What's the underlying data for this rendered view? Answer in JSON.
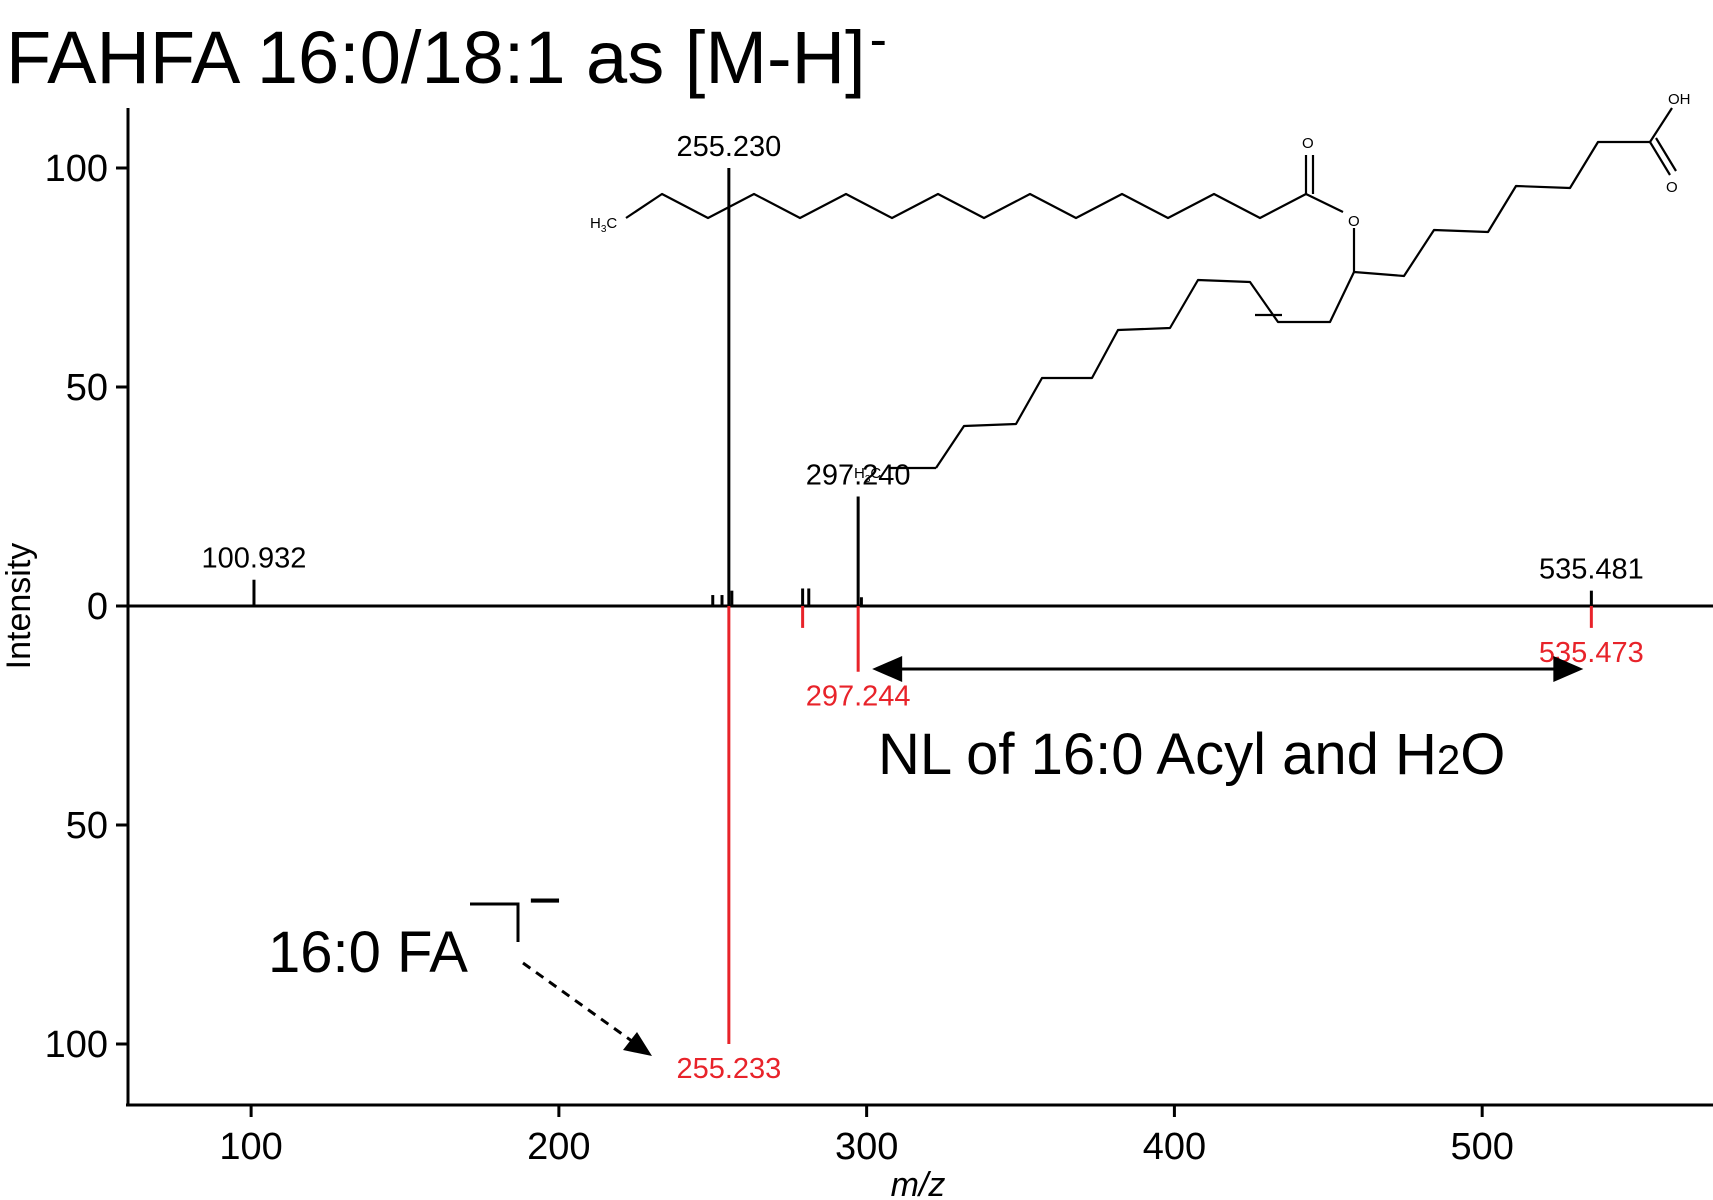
{
  "chart_data": {
    "type": "mirror_spectrum",
    "title": "FAHFA 16:0/18:1 as [M-H]",
    "title_superscript": "-",
    "xlabel": "m/z",
    "ylabel": "Intensity",
    "xlim": [
      60,
      575
    ],
    "ylim_top": [
      0,
      100
    ],
    "ylim_bottom": [
      0,
      100
    ],
    "x_ticks": [
      100,
      200,
      300,
      400,
      500
    ],
    "y_ticks_top": [
      0,
      50,
      100
    ],
    "y_ticks_bottom": [
      50,
      100
    ],
    "colors": {
      "top": "#000000",
      "bottom": "#e8232a"
    },
    "series": [
      {
        "name": "top",
        "color": "#000000",
        "peaks": [
          {
            "mz": 100.932,
            "intensity": 6,
            "label": "100.932"
          },
          {
            "mz": 250.0,
            "intensity": 2.5
          },
          {
            "mz": 253.0,
            "intensity": 2.5
          },
          {
            "mz": 255.23,
            "intensity": 100,
            "label": "255.230"
          },
          {
            "mz": 256.2,
            "intensity": 3.5
          },
          {
            "mz": 279.2,
            "intensity": 4
          },
          {
            "mz": 281.2,
            "intensity": 4
          },
          {
            "mz": 297.24,
            "intensity": 25,
            "label": "297.240"
          },
          {
            "mz": 298.3,
            "intensity": 2
          },
          {
            "mz": 535.481,
            "intensity": 3.5,
            "label": "535.481"
          }
        ]
      },
      {
        "name": "bottom",
        "color": "#e8232a",
        "peaks": [
          {
            "mz": 255.233,
            "intensity": 100,
            "label": "255.233"
          },
          {
            "mz": 279.2,
            "intensity": 5
          },
          {
            "mz": 297.244,
            "intensity": 15,
            "label": "297.244"
          },
          {
            "mz": 535.473,
            "intensity": 5,
            "label": "535.473"
          }
        ]
      }
    ],
    "annotations": {
      "neutral_loss": {
        "text": "NL of 16:0 Acyl and H",
        "subscript": "2",
        "suffix": "O",
        "from_mz": 535.473,
        "to_mz": 297.244
      },
      "fa_ion": {
        "text": "16:0 FA",
        "superscript": "−",
        "target_mz": 255.233
      }
    },
    "molecule": {
      "labels": [
        "H3C",
        "O",
        "O",
        "OH",
        "O",
        "H3C"
      ]
    }
  }
}
